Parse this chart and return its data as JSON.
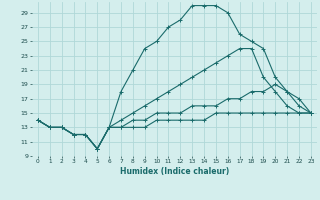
{
  "xlabel": "Humidex (Indice chaleur)",
  "bg_color": "#d4eeed",
  "grid_color": "#b0d8d8",
  "line_color": "#1a6b6b",
  "xlim": [
    -0.5,
    23.5
  ],
  "ylim": [
    9,
    30.5
  ],
  "xticks": [
    0,
    1,
    2,
    3,
    4,
    5,
    6,
    7,
    8,
    9,
    10,
    11,
    12,
    13,
    14,
    15,
    16,
    17,
    18,
    19,
    20,
    21,
    22,
    23
  ],
  "yticks": [
    9,
    11,
    13,
    15,
    17,
    19,
    21,
    23,
    25,
    27,
    29
  ],
  "lines": [
    {
      "x": [
        0,
        1,
        2,
        3,
        4,
        5,
        6,
        7,
        8,
        9,
        10,
        11,
        12,
        13,
        14,
        15,
        16,
        17,
        18,
        19,
        20,
        21,
        22,
        23
      ],
      "y": [
        14,
        13,
        13,
        12,
        12,
        10,
        13,
        18,
        21,
        24,
        25,
        27,
        28,
        30,
        30,
        30,
        29,
        26,
        25,
        24,
        20,
        18,
        16,
        15
      ]
    },
    {
      "x": [
        0,
        1,
        2,
        3,
        4,
        5,
        6,
        7,
        8,
        9,
        10,
        11,
        12,
        13,
        14,
        15,
        16,
        17,
        18,
        19,
        20,
        21,
        22,
        23
      ],
      "y": [
        14,
        13,
        13,
        12,
        12,
        10,
        13,
        14,
        15,
        16,
        17,
        18,
        19,
        20,
        21,
        22,
        23,
        24,
        24,
        20,
        18,
        16,
        15,
        15
      ]
    },
    {
      "x": [
        0,
        1,
        2,
        3,
        4,
        5,
        6,
        7,
        8,
        9,
        10,
        11,
        12,
        13,
        14,
        15,
        16,
        17,
        18,
        19,
        20,
        21,
        22,
        23
      ],
      "y": [
        14,
        13,
        13,
        12,
        12,
        10,
        13,
        13,
        14,
        14,
        15,
        15,
        15,
        16,
        16,
        16,
        17,
        17,
        18,
        18,
        19,
        18,
        17,
        15
      ]
    },
    {
      "x": [
        0,
        1,
        2,
        3,
        4,
        5,
        6,
        7,
        8,
        9,
        10,
        11,
        12,
        13,
        14,
        15,
        16,
        17,
        18,
        19,
        20,
        21,
        22,
        23
      ],
      "y": [
        14,
        13,
        13,
        12,
        12,
        10,
        13,
        13,
        13,
        13,
        14,
        14,
        14,
        14,
        14,
        15,
        15,
        15,
        15,
        15,
        15,
        15,
        15,
        15
      ]
    }
  ]
}
